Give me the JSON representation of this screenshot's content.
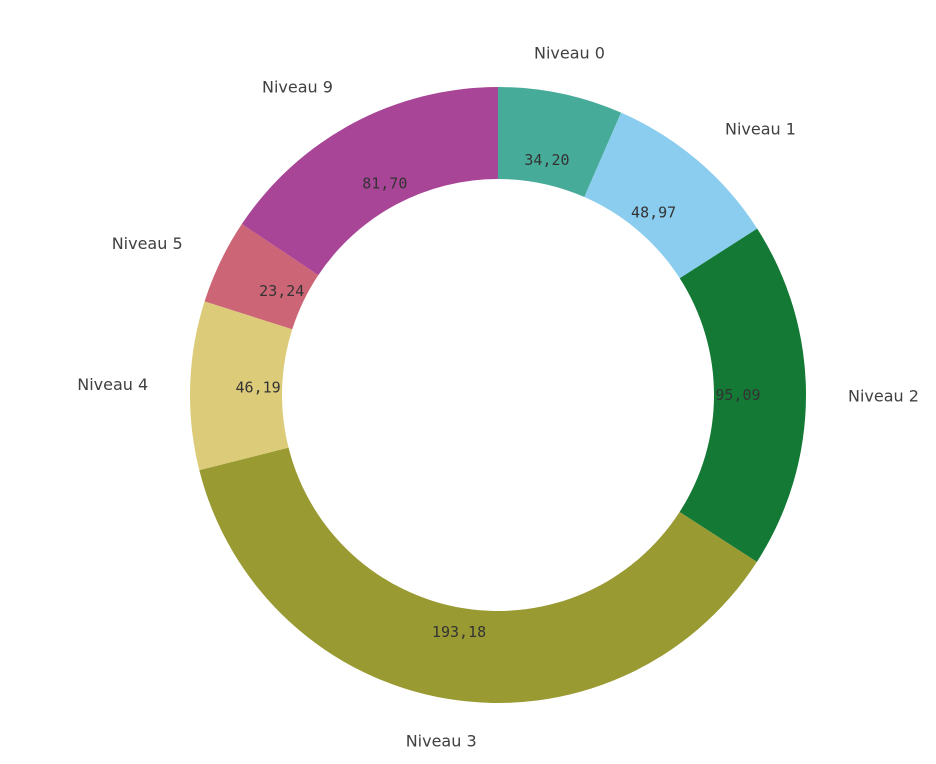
{
  "chart_data": {
    "type": "pie",
    "variant": "donut",
    "title": "",
    "slices": [
      {
        "label": "Niveau 0",
        "value": 34.2,
        "display": "34,20",
        "color": "#47AB9A"
      },
      {
        "label": "Niveau 1",
        "value": 48.97,
        "display": "48,97",
        "color": "#8BCDEE"
      },
      {
        "label": "Niveau 2",
        "value": 95.09,
        "display": "95,09",
        "color": "#137935"
      },
      {
        "label": "Niveau 3",
        "value": 193.18,
        "display": "193,18",
        "color": "#9A9A33"
      },
      {
        "label": "Niveau 4",
        "value": 46.19,
        "display": "46,19",
        "color": "#DCCB79"
      },
      {
        "label": "Niveau 5",
        "value": 23.24,
        "display": "23,24",
        "color": "#CC6677"
      },
      {
        "label": "Niveau 9",
        "value": 81.7,
        "display": "81,70",
        "color": "#A94597"
      }
    ],
    "start_angle": "12 o'clock",
    "direction": "clockwise",
    "legend": "none",
    "labels": "category outside, value inside"
  }
}
